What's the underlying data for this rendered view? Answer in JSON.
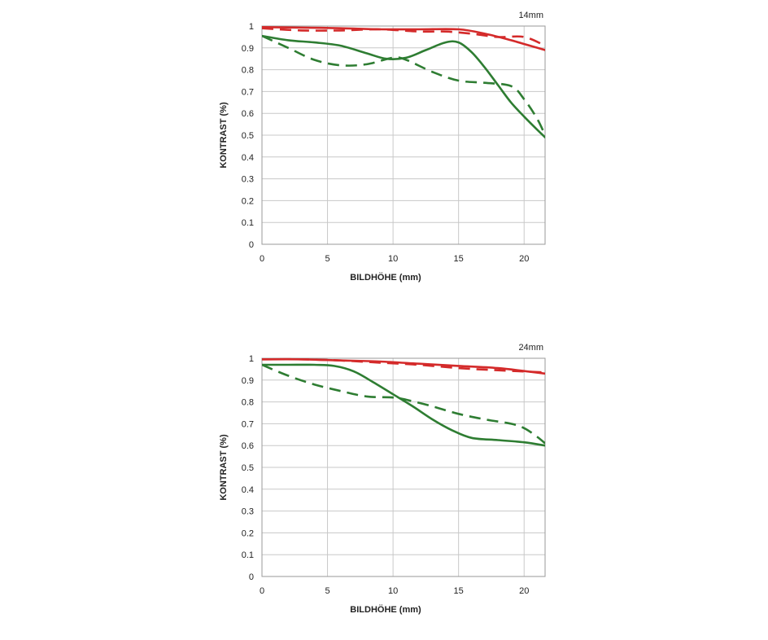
{
  "chart_data": [
    {
      "type": "line",
      "title": "14mm",
      "xlabel": "BILDHÖHE (mm)",
      "ylabel": "KONTRAST (%)",
      "xlim": [
        0,
        21.6
      ],
      "ylim": [
        0,
        1
      ],
      "xticks": [
        0,
        5,
        10,
        15,
        20
      ],
      "yticks": [
        0,
        0.1,
        0.2,
        0.3,
        0.4,
        0.5,
        0.6,
        0.7,
        0.8,
        0.9,
        1
      ],
      "ytick_labels": [
        "0",
        "0.1",
        "0.2",
        "0.3",
        "0.4",
        "0.5",
        "0.6",
        "0.7",
        "0.8",
        "0.9",
        "1"
      ],
      "grid": true,
      "series": [
        {
          "color": "#d42a2a",
          "style": "solid",
          "x": [
            0,
            3,
            6,
            9,
            12,
            15,
            17,
            19,
            21.6
          ],
          "y": [
            0.995,
            0.993,
            0.99,
            0.985,
            0.985,
            0.985,
            0.965,
            0.935,
            0.89
          ]
        },
        {
          "color": "#d42a2a",
          "style": "dashed",
          "x": [
            0,
            3,
            6,
            9,
            12,
            14,
            16,
            18,
            20,
            21.6
          ],
          "y": [
            0.99,
            0.98,
            0.98,
            0.985,
            0.975,
            0.975,
            0.965,
            0.95,
            0.95,
            0.91
          ]
        },
        {
          "color": "#2e7d32",
          "style": "solid",
          "x": [
            0,
            2,
            4,
            6,
            8,
            9.5,
            11,
            12.5,
            14,
            15,
            16,
            17,
            18,
            19,
            20,
            21,
            21.6
          ],
          "y": [
            0.955,
            0.935,
            0.925,
            0.91,
            0.875,
            0.85,
            0.855,
            0.89,
            0.925,
            0.925,
            0.88,
            0.81,
            0.73,
            0.65,
            0.585,
            0.525,
            0.49
          ]
        },
        {
          "color": "#2e7d32",
          "style": "dashed",
          "x": [
            0,
            2,
            4,
            6,
            8,
            10,
            11,
            13,
            15,
            17,
            19,
            20,
            21,
            21.6
          ],
          "y": [
            0.955,
            0.9,
            0.845,
            0.82,
            0.825,
            0.855,
            0.845,
            0.79,
            0.75,
            0.74,
            0.725,
            0.665,
            0.575,
            0.5
          ]
        }
      ]
    },
    {
      "type": "line",
      "title": "24mm",
      "xlabel": "BILDHÖHE (mm)",
      "ylabel": "KONTRAST (%)",
      "xlim": [
        0,
        21.6
      ],
      "ylim": [
        0,
        1
      ],
      "xticks": [
        0,
        5,
        10,
        15,
        20
      ],
      "yticks": [
        0,
        0.1,
        0.2,
        0.3,
        0.4,
        0.5,
        0.6,
        0.7,
        0.8,
        0.9,
        1
      ],
      "ytick_labels": [
        "0",
        "0.1",
        "0.2",
        "0.3",
        "0.4",
        "0.5",
        "0.6",
        "0.7",
        "0.8",
        "0.9",
        "1"
      ],
      "grid": true,
      "series": [
        {
          "color": "#d42a2a",
          "style": "solid",
          "x": [
            0,
            3,
            6,
            9,
            12,
            15,
            18,
            21.6
          ],
          "y": [
            0.995,
            0.995,
            0.99,
            0.985,
            0.975,
            0.965,
            0.955,
            0.93
          ]
        },
        {
          "color": "#d42a2a",
          "style": "dashed",
          "x": [
            0,
            3,
            6,
            9,
            12,
            15,
            18,
            21.6
          ],
          "y": [
            0.995,
            0.995,
            0.99,
            0.98,
            0.97,
            0.955,
            0.945,
            0.935
          ]
        },
        {
          "color": "#2e7d32",
          "style": "solid",
          "x": [
            0,
            2,
            4,
            5.5,
            7,
            8.5,
            10,
            11.5,
            13,
            14.5,
            16,
            18,
            20,
            21.6
          ],
          "y": [
            0.97,
            0.97,
            0.97,
            0.965,
            0.94,
            0.89,
            0.835,
            0.78,
            0.72,
            0.67,
            0.635,
            0.625,
            0.615,
            0.6
          ]
        },
        {
          "color": "#2e7d32",
          "style": "dashed",
          "x": [
            0,
            2,
            4,
            6,
            8,
            10,
            11,
            13,
            15,
            17,
            19,
            20,
            21,
            21.6
          ],
          "y": [
            0.97,
            0.92,
            0.88,
            0.85,
            0.825,
            0.82,
            0.81,
            0.78,
            0.745,
            0.72,
            0.7,
            0.68,
            0.64,
            0.61
          ]
        }
      ]
    }
  ]
}
